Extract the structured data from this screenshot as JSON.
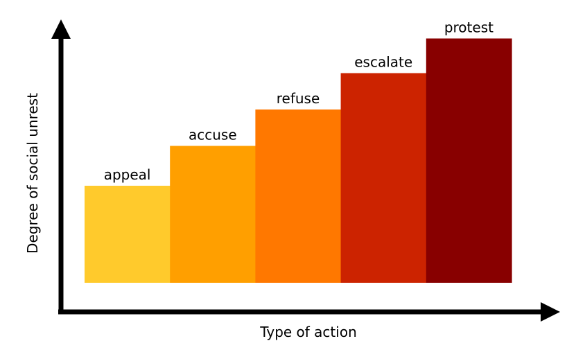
{
  "chart_data": {
    "type": "bar",
    "title": "",
    "xlabel": "Type of action",
    "ylabel": "Degree of social unrest",
    "categories": [
      "appeal",
      "accuse",
      "refuse",
      "escalate",
      "protest"
    ],
    "values": [
      2.8,
      3.95,
      5.0,
      6.05,
      7.05
    ],
    "ylim": [
      0,
      8
    ],
    "grid": false,
    "show_tick_labels": false,
    "colors": [
      "#FFCA2C",
      "#FF9F00",
      "#FF7800",
      "#CC2300",
      "#880000"
    ]
  }
}
